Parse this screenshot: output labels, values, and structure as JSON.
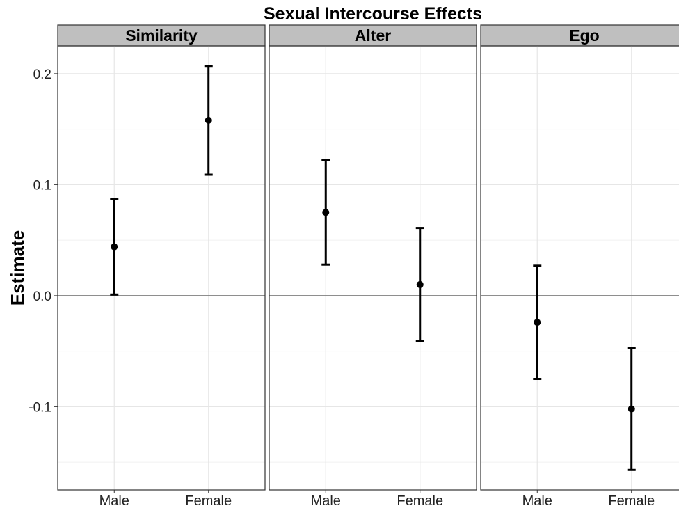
{
  "chart_data": {
    "type": "errorbar",
    "title": "Sexual Intercourse Effects",
    "ylabel": "Estimate",
    "xlabel": "",
    "categories": [
      "Male",
      "Female"
    ],
    "ylim": [
      -0.175,
      0.225
    ],
    "yticks": [
      -0.1,
      0.0,
      0.1,
      0.2
    ],
    "ytick_labels": [
      "-0.1",
      "0.0",
      "0.1",
      "0.2"
    ],
    "reference_line": 0.0,
    "grid": true,
    "panels": [
      {
        "name": "Similarity",
        "points": [
          {
            "x": "Male",
            "estimate": 0.044,
            "lower": 0.001,
            "upper": 0.087
          },
          {
            "x": "Female",
            "estimate": 0.158,
            "lower": 0.109,
            "upper": 0.207
          }
        ]
      },
      {
        "name": "Alter",
        "points": [
          {
            "x": "Male",
            "estimate": 0.075,
            "lower": 0.028,
            "upper": 0.122
          },
          {
            "x": "Female",
            "estimate": 0.01,
            "lower": -0.041,
            "upper": 0.061
          }
        ]
      },
      {
        "name": "Ego",
        "points": [
          {
            "x": "Male",
            "estimate": -0.024,
            "lower": -0.075,
            "upper": 0.027
          },
          {
            "x": "Female",
            "estimate": -0.102,
            "lower": -0.157,
            "upper": -0.047
          }
        ]
      }
    ]
  },
  "colors": {
    "strip_fill": "#bfbfbf",
    "grid": "#e6e6e6",
    "zero_line": "#7f7f7f",
    "marks": "#000000"
  }
}
